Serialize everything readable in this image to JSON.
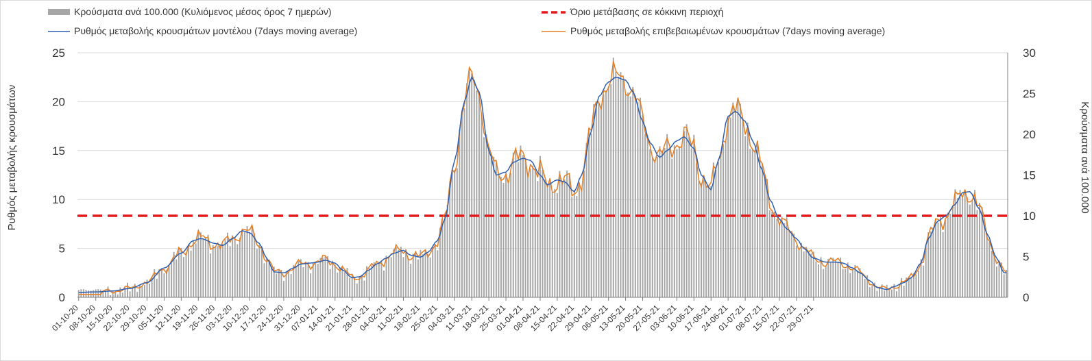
{
  "chart_data": {
    "type": "bar+line",
    "title": "",
    "legend": {
      "placement": "top",
      "bars": "Κρούσματα ανά 100.000 (Κυλιόμενος μέσος όρος 7 ημερών)",
      "threshold": "Όριο μετάβασης σε κόκκινη περιοχή",
      "model_line": "Ρυθμός μεταβολής κρουσμάτων μοντέλου (7days moving average)",
      "confirmed_line": "Ρυθμός μεταβολής επιβεβαιωμένων κρουσμάτων (7days moving average)"
    },
    "ylabel_left": "Ρυθμός μεταβολής κρουσμάτων",
    "ylabel_right": "Κρούσματα ανά 100.000",
    "ylim_left": [
      0,
      25
    ],
    "ylim_right": [
      0,
      30
    ],
    "yticks_left": [
      "0",
      "5",
      "10",
      "15",
      "20",
      "25"
    ],
    "yticks_right": [
      "0",
      "5",
      "10",
      "15",
      "20",
      "25",
      "30"
    ],
    "x_start": "2020-10-01",
    "x_days": 306,
    "x_tick_labels": [
      "01-10-20",
      "08-10-20",
      "15-10-20",
      "22-10-20",
      "29-10-20",
      "05-11-20",
      "12-11-20",
      "19-11-20",
      "26-11-20",
      "03-12-20",
      "10-12-20",
      "17-12-20",
      "24-12-20",
      "31-12-20",
      "07-01-21",
      "14-01-21",
      "21-01-21",
      "28-01-21",
      "04-02-21",
      "11-02-21",
      "18-02-21",
      "25-02-21",
      "04-03-21",
      "11-03-21",
      "18-03-21",
      "25-03-21",
      "01-04-21",
      "08-04-21",
      "15-04-21",
      "22-04-21",
      "29-04-21",
      "06-05-21",
      "13-05-21",
      "20-05-21",
      "27-05-21",
      "03-06-21",
      "10-06-21",
      "17-06-21",
      "24-06-21",
      "01-07-21",
      "08-07-21",
      "15-07-21",
      "22-07-21",
      "29-07-21"
    ],
    "threshold_value_right_axis": 10,
    "colors": {
      "bars": "#a6a6a6",
      "threshold": "#e31a1c",
      "model_line": "#2e5fb0",
      "confirmed_line": "#e67e22"
    },
    "model_series_keypoints": [
      [
        0,
        0.5
      ],
      [
        7,
        0.55
      ],
      [
        14,
        0.65
      ],
      [
        21,
        0.9
      ],
      [
        28,
        1.5
      ],
      [
        35,
        3.0
      ],
      [
        42,
        4.5
      ],
      [
        47,
        5.8
      ],
      [
        50,
        6.0
      ],
      [
        56,
        5.5
      ],
      [
        59,
        5.3
      ],
      [
        63,
        6.0
      ],
      [
        67,
        6.8
      ],
      [
        70,
        6.6
      ],
      [
        74,
        5.5
      ],
      [
        77,
        4.0
      ],
      [
        80,
        2.6
      ],
      [
        84,
        2.5
      ],
      [
        88,
        3.0
      ],
      [
        91,
        3.4
      ],
      [
        95,
        3.5
      ],
      [
        98,
        3.6
      ],
      [
        101,
        3.8
      ],
      [
        105,
        3.5
      ],
      [
        108,
        2.8
      ],
      [
        112,
        2.0
      ],
      [
        115,
        2.1
      ],
      [
        119,
        2.8
      ],
      [
        122,
        3.4
      ],
      [
        126,
        4.0
      ],
      [
        129,
        4.5
      ],
      [
        133,
        4.8
      ],
      [
        136,
        4.3
      ],
      [
        140,
        4.1
      ],
      [
        143,
        4.6
      ],
      [
        147,
        5.8
      ],
      [
        150,
        8.0
      ],
      [
        154,
        14.0
      ],
      [
        158,
        20.0
      ],
      [
        161,
        22.5
      ],
      [
        164,
        21.0
      ],
      [
        168,
        15.0
      ],
      [
        171,
        12.5
      ],
      [
        175,
        12.8
      ],
      [
        178,
        13.8
      ],
      [
        182,
        14.2
      ],
      [
        185,
        14.0
      ],
      [
        189,
        12.5
      ],
      [
        192,
        11.5
      ],
      [
        196,
        12.0
      ],
      [
        199,
        11.8
      ],
      [
        203,
        10.8
      ],
      [
        206,
        12.5
      ],
      [
        210,
        17.0
      ],
      [
        213,
        20.5
      ],
      [
        217,
        22.0
      ],
      [
        220,
        22.5
      ],
      [
        224,
        22.2
      ],
      [
        227,
        21.0
      ],
      [
        231,
        18.0
      ],
      [
        234,
        15.8
      ],
      [
        238,
        14.3
      ],
      [
        241,
        15.0
      ],
      [
        245,
        16.0
      ],
      [
        248,
        16.4
      ],
      [
        252,
        15.2
      ],
      [
        255,
        12.5
      ],
      [
        259,
        11.0
      ],
      [
        262,
        14.0
      ],
      [
        266,
        18.5
      ],
      [
        269,
        19.0
      ],
      [
        273,
        18.0
      ],
      [
        276,
        16.0
      ],
      [
        280,
        13.0
      ],
      [
        283,
        10.0
      ],
      [
        287,
        8.0
      ],
      [
        290,
        7.0
      ],
      [
        294,
        6.0
      ],
      [
        297,
        5.0
      ],
      [
        301,
        4.0
      ],
      [
        306,
        3.6
      ],
      [
        310,
        3.6
      ],
      [
        313,
        3.5
      ],
      [
        317,
        3.0
      ],
      [
        320,
        2.5
      ],
      [
        324,
        1.7
      ],
      [
        327,
        1.0
      ],
      [
        331,
        0.8
      ],
      [
        334,
        1.1
      ],
      [
        338,
        1.5
      ],
      [
        341,
        2.0
      ],
      [
        345,
        3.5
      ],
      [
        348,
        6.0
      ],
      [
        352,
        7.8
      ],
      [
        355,
        8.3
      ],
      [
        359,
        9.5
      ],
      [
        362,
        10.7
      ],
      [
        365,
        10.8
      ],
      [
        369,
        9.0
      ],
      [
        372,
        6.5
      ],
      [
        376,
        4.0
      ],
      [
        379,
        2.5
      ]
    ]
  }
}
